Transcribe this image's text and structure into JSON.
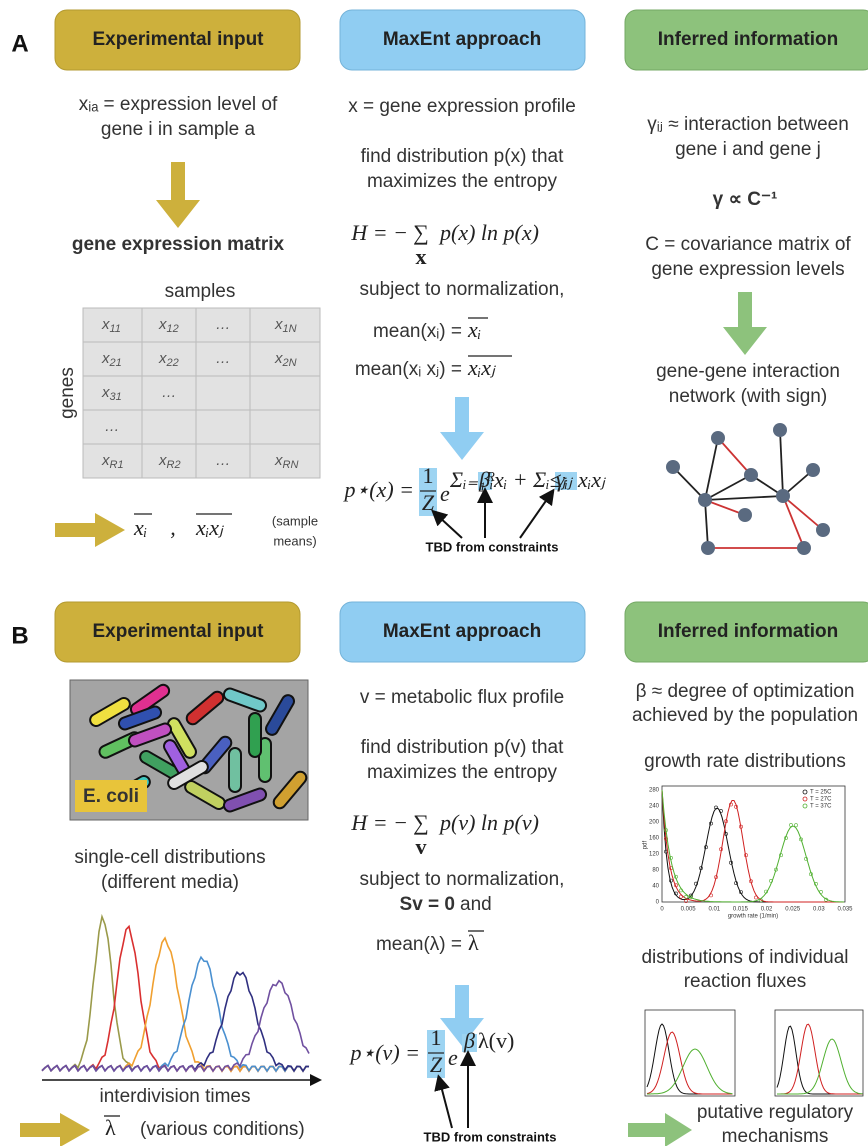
{
  "A": {
    "label": "A",
    "headers": [
      "Experimental input",
      "MaxEnt approach",
      "Inferred information"
    ],
    "input_lines": [
      "xᵢₐ = expression level of",
      "gene i in sample a"
    ],
    "matrix_title": "gene expression matrix",
    "matrix_cols_label": "samples",
    "matrix_rows_label": "genes",
    "matrix": [
      [
        [
          "x",
          "11"
        ],
        [
          "x",
          "12"
        ],
        [
          "…"
        ],
        [
          "x",
          "1N"
        ]
      ],
      [
        [
          "x",
          "21"
        ],
        [
          "x",
          "22"
        ],
        [
          "…"
        ],
        [
          "x",
          "2N"
        ]
      ],
      [
        [
          "x",
          "31"
        ],
        [
          "…"
        ]
      ],
      [
        [
          "…"
        ]
      ],
      [
        [
          "x",
          "R1"
        ],
        [
          "x",
          "R2"
        ],
        [
          "…"
        ],
        [
          "x",
          "RN"
        ]
      ]
    ],
    "means": [
      "xᵢ",
      ",",
      "xᵢxⱼ"
    ],
    "means_note": [
      "(sample",
      "means)"
    ],
    "maxent_lines": [
      "x = gene expression profile",
      "find distribution p(x) that",
      "maximizes the entropy"
    ],
    "entropy": {
      "lhs": "H = −",
      "sum": "∑",
      "under": "x",
      "rhs": "p(x) ln p(x)"
    },
    "constraint_intro": "subject to normalization,",
    "constraints": [
      {
        "lhs": "mean(xᵢ) =",
        "rhs": "xᵢ"
      },
      {
        "lhs": "mean(xᵢ xⱼ) =",
        "rhs": "xᵢxⱼ"
      }
    ],
    "solution": {
      "lhs": "p⋆(x) =",
      "num": "1",
      "den": "Z",
      "base": "e",
      "exponent": [
        "Σᵢ₌₁ᴿ",
        "βᵢ",
        "xᵢ + Σᵢ≤ⱼ",
        "γᵢⱼ",
        "xᵢxⱼ"
      ]
    },
    "solution_note": "TBD from constraints",
    "inferred_lines": [
      "γᵢⱼ ≈ interaction between",
      "gene i and gene j"
    ],
    "relation": "γ ∝ C⁻¹",
    "covariance_lines": [
      "C = covariance matrix of",
      "gene expression levels"
    ],
    "network_lines": [
      "gene-gene interaction",
      "network (with sign)"
    ]
  },
  "B": {
    "label": "B",
    "headers": [
      "Experimental input",
      "MaxEnt approach",
      "Inferred information"
    ],
    "image_label": "E. coli",
    "input_lines": [
      "single-cell distributions",
      "(different media)"
    ],
    "axis_label": "interdivision times",
    "summary": [
      "λ",
      "(various conditions)"
    ],
    "maxent_lines": [
      "v = metabolic flux profile",
      "find distribution p(v) that",
      "maximizes the entropy"
    ],
    "entropy": {
      "lhs": "H = −",
      "sum": "∑",
      "under": "v",
      "rhs": "p(v) ln p(v)"
    },
    "constraint_intro": "subject to normalization,",
    "constraint_bold": "Sv = 0",
    "constraint_and": "and",
    "constraint": {
      "lhs": "mean(λ) =",
      "rhs": "λ"
    },
    "solution": {
      "lhs": "p⋆(v) =",
      "num": "1",
      "den": "Z",
      "base": "e",
      "exponent": [
        "β",
        "λ(v)"
      ]
    },
    "solution_note": "TBD from constraints",
    "inferred_lines": [
      "β ≈ degree of optimization",
      "achieved by the population"
    ],
    "growth_title": "growth rate distributions",
    "growth_chart": {
      "x_label": "growth rate (1/min)",
      "y_label": "pdf",
      "xticks": [
        "0",
        "0.005",
        "0.01",
        "0.015",
        "0.02",
        "0.025",
        "0.03",
        "0.035"
      ],
      "yticks": [
        "0",
        "40",
        "80",
        "120",
        "160",
        "200",
        "240",
        "280"
      ],
      "legend": [
        "T = 25C",
        "T = 27C",
        "T = 37C"
      ]
    },
    "flux_title": [
      "distributions of individual",
      "reaction fluxes"
    ],
    "output_lines": [
      "putative regulatory",
      "mechanisms"
    ]
  }
}
